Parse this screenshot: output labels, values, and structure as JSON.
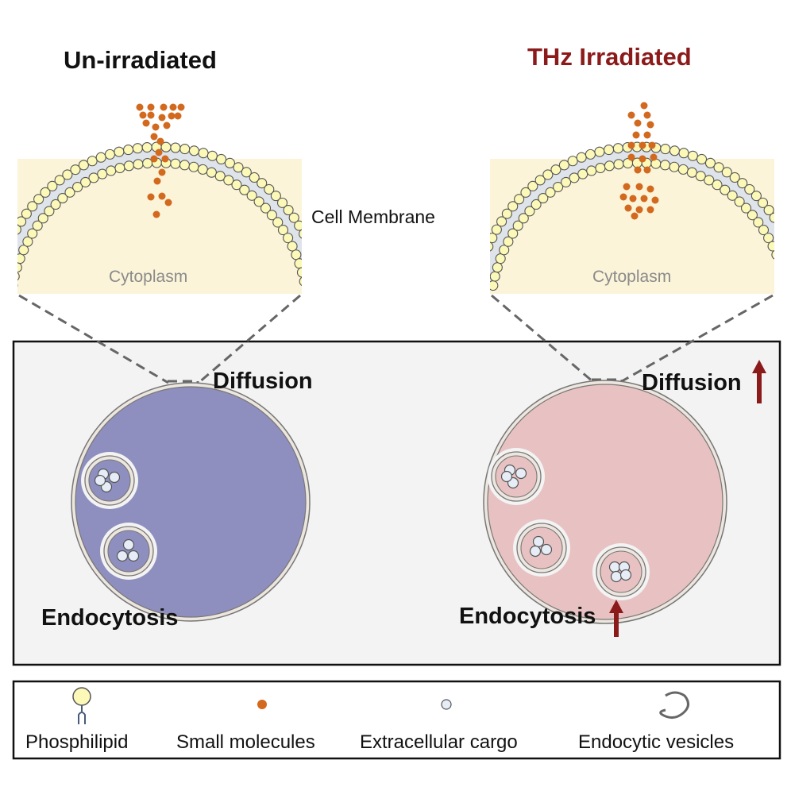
{
  "left_panel": {
    "title": "Un-irradiated",
    "cytoplasm_label": "Cytoplasm",
    "diffusion_label": "Diffusion",
    "endocytosis_label": "Endocytosis",
    "cell_color": "#8e8fbf"
  },
  "right_panel": {
    "title": "THz Irradiated",
    "cytoplasm_label": "Cytoplasm",
    "diffusion_label": "Diffusion",
    "endocytosis_label": "Endocytosis",
    "cell_color": "#e8c2c2",
    "increase_arrow_color": "#8b1a1a"
  },
  "membrane_label": "Cell Membrane",
  "colors": {
    "title_highlight": "#8b1a1a",
    "cytoplasm": "#fbf4d8",
    "phospholipid_head": "#fbf8b8",
    "small_molecule": "#d2691e",
    "cargo": "#e6edf6",
    "box_background": "#f3f3f3"
  },
  "legend": [
    {
      "icon": "phospholipid-icon",
      "label": "Phosphilipid"
    },
    {
      "icon": "small-molecule-icon",
      "label": "Small  molecules"
    },
    {
      "icon": "cargo-icon",
      "label": "Extracellular  cargo"
    },
    {
      "icon": "endocytic-vesicle-icon",
      "label": "Endocytic vesicles"
    }
  ]
}
